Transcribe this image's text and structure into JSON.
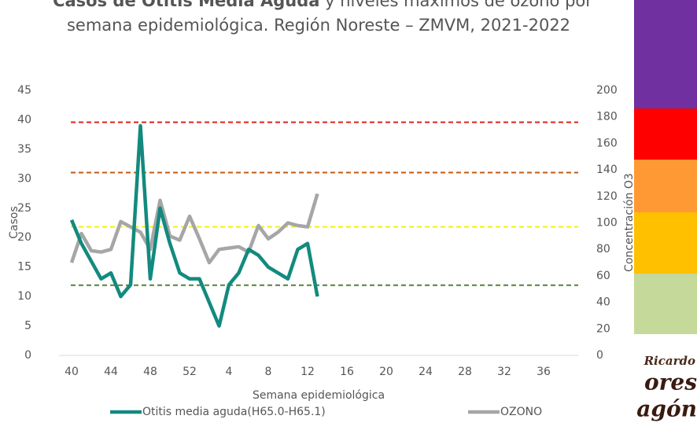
{
  "chart_data": {
    "type": "line",
    "title_bold": "Casos de Otitis Media Aguda",
    "title_rest": "y niveles máximos de ozono por",
    "title_line2": "semana epidemiológica. Región Noreste – ZMVM, 2021-2022",
    "x_label": "Semana epidemiológica",
    "y_label": "Casos",
    "y2_label": "Concentración O3",
    "categories": [
      "40",
      null,
      null,
      null,
      "44",
      null,
      null,
      null,
      "48",
      null,
      null,
      null,
      "52",
      null,
      null,
      null,
      "4",
      null,
      null,
      null,
      "8",
      null,
      null,
      null,
      "12",
      null,
      null,
      null,
      "16",
      null,
      null,
      null,
      "20",
      null,
      null,
      null,
      "24",
      null,
      null,
      null,
      "28",
      null,
      null,
      null,
      "32",
      null,
      null,
      null,
      "36",
      null,
      null,
      null
    ],
    "series": [
      {
        "name": "Otitis media aguda(H65.0-H65.1)",
        "color": "#138a7e",
        "values": [
          23,
          19,
          16,
          13,
          14,
          10,
          12,
          39,
          13,
          25,
          19,
          14,
          13,
          13,
          9,
          5,
          12,
          14,
          18,
          17,
          15,
          14,
          13,
          18,
          19,
          10,
          null,
          null,
          null,
          null,
          null,
          null,
          null,
          null,
          null,
          null,
          null,
          null,
          null,
          null,
          null,
          null,
          null,
          null,
          null,
          null,
          null,
          null,
          null,
          null,
          null,
          null
        ]
      },
      {
        "name": "OZONO",
        "color": "#a6a6a6",
        "axis": "y2",
        "values": [
          70,
          92,
          79,
          78,
          80,
          101,
          97,
          93,
          80,
          117,
          90,
          87,
          105,
          88,
          70,
          80,
          81,
          82,
          78,
          98,
          88,
          93,
          100,
          98,
          97,
          122,
          null,
          null,
          null,
          null,
          null,
          null,
          null,
          null,
          null,
          null,
          null,
          null,
          null,
          null,
          null,
          null,
          null,
          null,
          null,
          null,
          null,
          null,
          null,
          null,
          null,
          null
        ]
      }
    ],
    "reference_lines": [
      {
        "value": 176,
        "color": "#e0201b"
      },
      {
        "value": 138,
        "color": "#c55a11"
      },
      {
        "value": 97,
        "color": "#f2f20a"
      },
      {
        "value": 53,
        "color": "#548235"
      }
    ],
    "ylim": [
      0,
      45
    ],
    "yticks": [
      0,
      5,
      10,
      15,
      20,
      25,
      30,
      35,
      40,
      45
    ],
    "y2lim": [
      0,
      200
    ],
    "y2ticks": [
      0,
      20,
      40,
      60,
      80,
      100,
      120,
      140,
      160,
      180,
      200
    ],
    "logo": [
      "Ricardo",
      "ores",
      "agón"
    ]
  }
}
